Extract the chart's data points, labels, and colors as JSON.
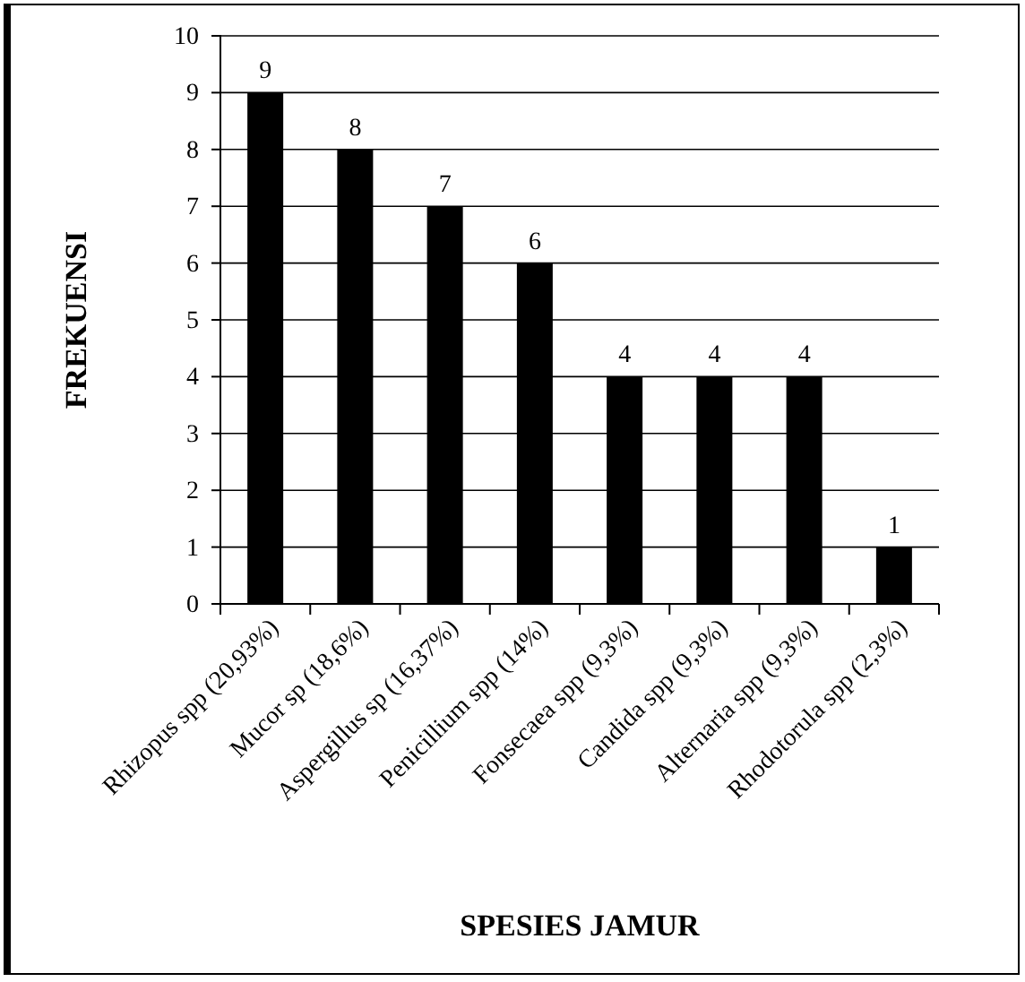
{
  "chart_data": {
    "type": "bar",
    "xlabel": "SPESIES JAMUR",
    "ylabel": "FREKUENSI",
    "categories": [
      "Rhizopus spp (20,93%)",
      "Mucor sp (18,6%)",
      "Aspergillus sp (16,37%)",
      "Penicillium spp (14%)",
      "Fonsecaea spp (9,3%)",
      "Candida spp (9,3%)",
      "Alternaria spp (9,3%)",
      "Rhodotorula spp (2,3%)"
    ],
    "values": [
      9,
      8,
      7,
      6,
      4,
      4,
      4,
      1
    ],
    "color": "#000000",
    "ylim": [
      0,
      10
    ],
    "yticks": [
      0,
      1,
      2,
      3,
      4,
      5,
      6,
      7,
      8,
      9,
      10
    ],
    "grid": "y",
    "data_labels": true
  }
}
